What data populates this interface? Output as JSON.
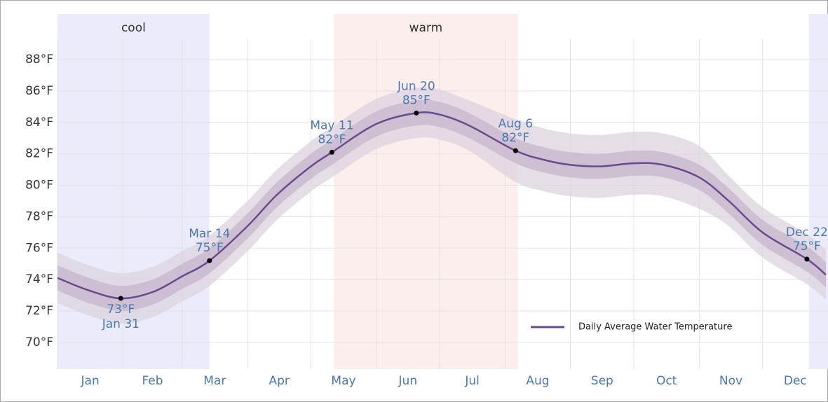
{
  "chart_data": {
    "type": "line",
    "x": [
      0,
      15,
      30,
      45,
      59,
      72,
      90,
      104,
      120,
      130,
      151,
      170,
      181,
      195,
      217,
      231,
      243,
      257,
      273,
      287,
      304,
      318,
      334,
      355,
      364
    ],
    "xlim": [
      0,
      365
    ],
    "xticks": [
      {
        "value": 15.5,
        "label": "Jan"
      },
      {
        "value": 45,
        "label": "Feb"
      },
      {
        "value": 74.5,
        "label": "Mar"
      },
      {
        "value": 105,
        "label": "Apr"
      },
      {
        "value": 135.5,
        "label": "May"
      },
      {
        "value": 166,
        "label": "Jun"
      },
      {
        "value": 196.5,
        "label": "Jul"
      },
      {
        "value": 227.5,
        "label": "Aug"
      },
      {
        "value": 258,
        "label": "Sep"
      },
      {
        "value": 288.5,
        "label": "Oct"
      },
      {
        "value": 319,
        "label": "Nov"
      },
      {
        "value": 349.5,
        "label": "Dec"
      }
    ],
    "xgrid": [
      0,
      31,
      59,
      90,
      120,
      151,
      181,
      212,
      243,
      273,
      304,
      334
    ],
    "ylim": [
      68.3,
      90.9
    ],
    "yticks": [
      {
        "value": 70,
        "label": "70°F"
      },
      {
        "value": 72,
        "label": "72°F"
      },
      {
        "value": 74,
        "label": "74°F"
      },
      {
        "value": 76,
        "label": "76°F"
      },
      {
        "value": 78,
        "label": "78°F"
      },
      {
        "value": 80,
        "label": "80°F"
      },
      {
        "value": 82,
        "label": "82°F"
      },
      {
        "value": 84,
        "label": "84°F"
      },
      {
        "value": 86,
        "label": "86°F"
      },
      {
        "value": 88,
        "label": "88°F"
      }
    ],
    "grid": true,
    "series": [
      {
        "name": "Daily Average Water Temperature",
        "color": "#6a4a8c",
        "values": [
          74.1,
          73.3,
          72.8,
          73.2,
          74.2,
          75.2,
          77.4,
          79.4,
          81.2,
          82.1,
          83.9,
          84.6,
          84.5,
          83.8,
          82.2,
          81.6,
          81.3,
          81.2,
          81.4,
          81.3,
          80.5,
          79.0,
          77.0,
          75.3,
          74.3
        ]
      }
    ],
    "bands": [
      {
        "color": "#dcd3df",
        "low": [
          72.5,
          71.7,
          71.2,
          71.6,
          72.6,
          73.6,
          75.8,
          77.8,
          79.6,
          80.5,
          82.3,
          83.0,
          82.9,
          82.2,
          80.2,
          79.6,
          79.3,
          79.2,
          79.4,
          79.3,
          78.5,
          77.4,
          75.4,
          73.7,
          72.7
        ],
        "high": [
          75.7,
          74.9,
          74.4,
          74.8,
          75.8,
          76.8,
          79.0,
          81.0,
          82.8,
          83.7,
          85.5,
          86.2,
          86.1,
          85.4,
          84.2,
          83.6,
          83.3,
          83.2,
          83.4,
          83.3,
          82.5,
          80.6,
          78.6,
          76.9,
          75.9
        ]
      },
      {
        "color": "#c6b6cc",
        "low": [
          73.3,
          72.5,
          72.0,
          72.4,
          73.4,
          74.4,
          76.6,
          78.6,
          80.4,
          81.3,
          83.1,
          83.8,
          83.7,
          83.0,
          81.4,
          80.8,
          80.5,
          80.4,
          80.6,
          80.5,
          79.7,
          78.2,
          76.2,
          74.5,
          73.5
        ],
        "high": [
          74.9,
          74.1,
          73.6,
          74.0,
          75.0,
          76.0,
          78.2,
          80.2,
          82.0,
          82.9,
          84.7,
          85.4,
          85.3,
          84.6,
          83.0,
          82.4,
          82.1,
          82.0,
          82.2,
          82.1,
          81.3,
          79.8,
          77.8,
          76.1,
          75.1
        ]
      }
    ],
    "seasons": [
      {
        "label": "cool",
        "start": 0,
        "end": 72,
        "color": "#ebebfc"
      },
      {
        "label": "warm",
        "start": 131,
        "end": 218,
        "color": "#fdeeee"
      },
      {
        "start": 356,
        "end": 365,
        "color": "#ebebfc"
      }
    ],
    "annotations": [
      {
        "x": 30,
        "y": 72.8,
        "date": "Jan 31",
        "value_label": "73°F",
        "position": "below"
      },
      {
        "x": 72,
        "y": 75.2,
        "date": "Mar 14",
        "value_label": "75°F",
        "position": "above"
      },
      {
        "x": 130,
        "y": 82.1,
        "date": "May 11",
        "value_label": "82°F",
        "position": "above"
      },
      {
        "x": 170,
        "y": 84.6,
        "date": "Jun 20",
        "value_label": "85°F",
        "position": "above"
      },
      {
        "x": 217,
        "y": 82.2,
        "date": "Aug 6",
        "value_label": "82°F",
        "position": "above"
      },
      {
        "x": 355,
        "y": 75.3,
        "date": "Dec 22",
        "value_label": "75°F",
        "position": "above"
      }
    ],
    "legend": "lower right"
  }
}
